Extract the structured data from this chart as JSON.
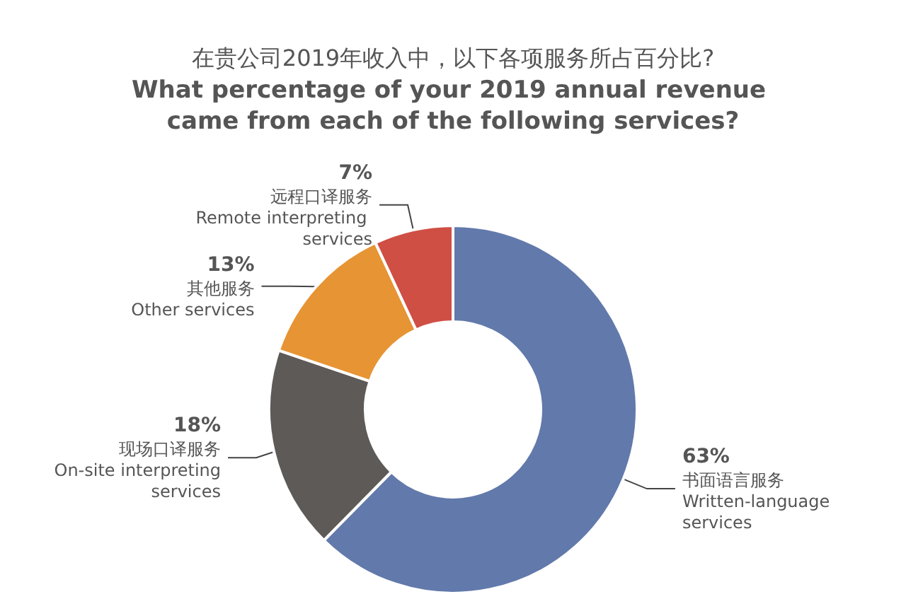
{
  "chart_data": {
    "type": "donut",
    "title": "在贵公司2019年收入中，以下各项服务所占百分比?",
    "subtitle": "What percentage of your 2019 annual revenue came from each of the following services?",
    "categories": [
      "书面语言服务\nWritten-language services",
      "现场口译服务\nOn-site interpreting services",
      "其他服务\nOther services",
      "远程口译服务\nRemote interpreting services"
    ],
    "values": [
      63,
      18,
      13,
      7
    ],
    "colors": [
      "#6279ab",
      "#5e5a57",
      "#e69434",
      "#cf4f45"
    ],
    "value_labels": [
      "63%",
      "18%",
      "13%",
      "7%"
    ],
    "legend": false
  }
}
